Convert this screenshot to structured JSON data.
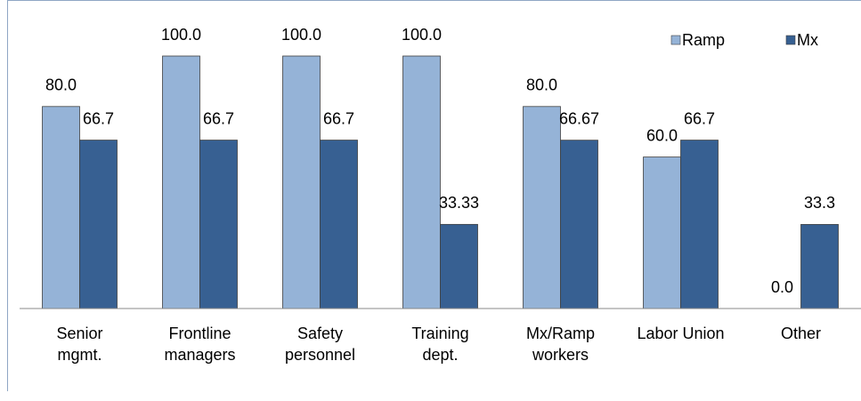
{
  "chart_data": {
    "type": "bar",
    "categories": [
      "Senior\nmgmt.",
      "Frontline\nmanagers",
      "Safety\npersonnel",
      "Training\ndept.",
      "Mx/Ramp\nworkers",
      "Labor Union",
      "Other"
    ],
    "series": [
      {
        "name": "Ramp",
        "color": "#95b3d7",
        "values": [
          80,
          100,
          100,
          100,
          80,
          60,
          0
        ],
        "value_labels": [
          "80.0",
          "100.0",
          "100.0",
          "100.0",
          "80.0",
          "60.0",
          "0.0"
        ]
      },
      {
        "name": "Mx",
        "color": "#376092",
        "values": [
          66.7,
          66.7,
          66.7,
          33.33,
          66.67,
          66.7,
          33.3
        ],
        "value_labels": [
          "66.7",
          "66.7",
          "66.7",
          "33.33",
          "66.67",
          "66.7",
          "33.3"
        ]
      }
    ],
    "ylim": [
      0,
      100
    ],
    "legend": "top-right"
  }
}
